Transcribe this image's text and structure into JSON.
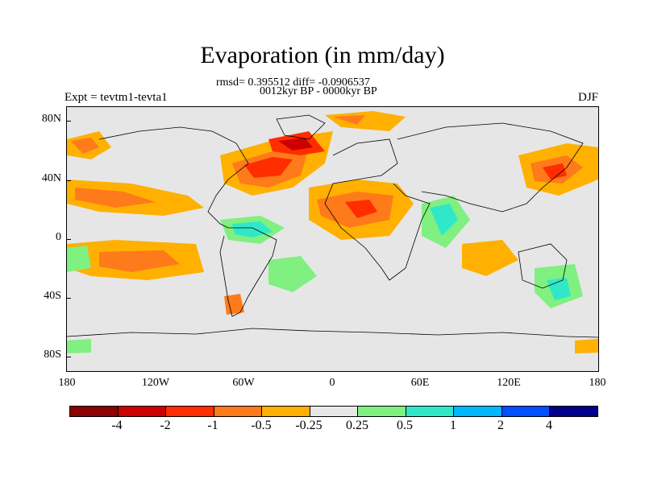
{
  "title": "Evaporation (in mm/day)",
  "subtitle_line1": "rmsd= 0.395512 diff= -0.0906537",
  "subtitle_line2": "0012kyr BP - 0000kyr BP",
  "left_label": "Expt = tevtm1-tevta1",
  "right_label": "DJF",
  "y_ticks": [
    "80N",
    "40N",
    "0",
    "40S",
    "80S"
  ],
  "x_ticks": [
    "180",
    "120W",
    "60W",
    "0",
    "60E",
    "120E",
    "180"
  ],
  "colorbar": {
    "labels": [
      "-4",
      "-2",
      "-1",
      "-0.5",
      "-0.25",
      "0.25",
      "0.5",
      "1",
      "2",
      "4"
    ],
    "colors": [
      "#8b0000",
      "#cd0000",
      "#ff2d00",
      "#ff7a1a",
      "#ffb000",
      "#e6e6e6",
      "#80f080",
      "#30e8c8",
      "#00b8ff",
      "#0050ff",
      "#00008b"
    ]
  },
  "chart_data": {
    "type": "heatmap",
    "title": "Evaporation (in mm/day)",
    "xlim": [
      -180,
      180
    ],
    "ylim": [
      -90,
      90
    ],
    "levels": [
      -4,
      -2,
      -1,
      -0.5,
      -0.25,
      0.25,
      0.5,
      1,
      2,
      4
    ],
    "season": "DJF",
    "rmsd": 0.395512,
    "diff": -0.0906537
  }
}
